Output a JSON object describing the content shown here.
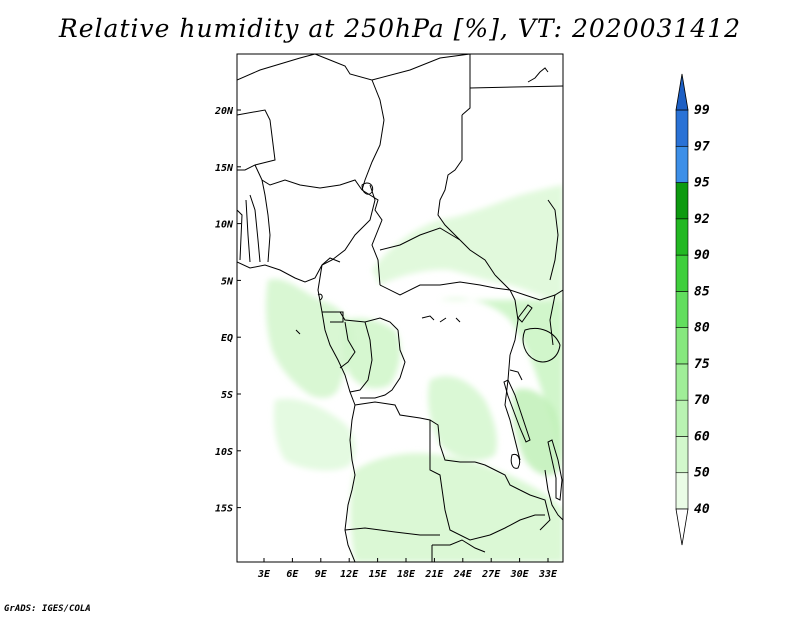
{
  "title": "Relative humidity at 250hPa [%], VT: 2020031412",
  "credit": "GrADS: IGES/COLA",
  "lat_labels": [
    "20N",
    "15N",
    "10N",
    "5N",
    "EQ",
    "5S",
    "10S",
    "15S"
  ],
  "lon_labels": [
    "3E",
    "6E",
    "9E",
    "12E",
    "15E",
    "18E",
    "21E",
    "24E",
    "27E",
    "30E",
    "33E"
  ],
  "colorbar": {
    "levels": [
      "40",
      "50",
      "60",
      "70",
      "75",
      "80",
      "85",
      "90",
      "92",
      "95",
      "97",
      "99"
    ],
    "colors": [
      "#ffffff",
      "#eafce6",
      "#d2f8cc",
      "#b9f3b2",
      "#a0ee98",
      "#86e87e",
      "#62de5e",
      "#3fcf3c",
      "#22b822",
      "#0d9a10",
      "#3d8fe8",
      "#2a72d6",
      "#1d5fc4"
    ]
  }
}
